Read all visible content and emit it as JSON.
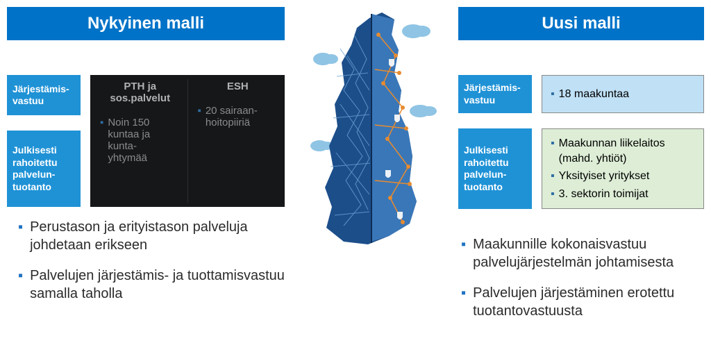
{
  "colors": {
    "title_bg": "#0073c8",
    "side_label_bg": "#1f92d6",
    "dark_box_bg": "#161718",
    "dark_text": "#8a8b8c",
    "dark_title_text": "#b0b1b2",
    "box_blue_bg": "#bfe0f5",
    "box_green_bg": "#ddedd6",
    "bullet_accent": "#2f6ea5",
    "bottom_bullet_accent": "#1f72c2",
    "map_dark": "#1c4e8a",
    "map_light": "#3a77b8",
    "map_node": "#e78b2f",
    "cloud": "#8fc4e4"
  },
  "left": {
    "title": "Nykyinen malli",
    "row1": {
      "label": "Järjestämis-\nvastuu",
      "colA_title": "PTH ja sos.palvelut",
      "colB_title": "ESH"
    },
    "row2": {
      "label": "Julkisesti rahoitettu palvelun-\ntuotanto",
      "colA_text": "Noin 150 kuntaa ja kunta-\nyhtymää",
      "colB_text": "20 sairaan-\nhoitopiiriä"
    },
    "bullets": [
      "Perustason ja erityistason palveluja johdetaan erikseen",
      "Palvelujen järjestämis- ja tuottamisvastuu samalla taholla"
    ]
  },
  "right": {
    "title": "Uusi malli",
    "row1": {
      "label": "Järjestämis-\nvastuu",
      "box_text": "18 maakuntaa",
      "box_bg": "#bfe0f5"
    },
    "row2": {
      "label": "Julkisesti rahoitettu palvelun-\ntuotanto",
      "box_items": [
        "Maakunnan liikelaitos (mahd. yhtiöt)",
        "Yksityiset yritykset",
        "3. sektorin toimijat"
      ],
      "box_bg": "#ddedd6"
    },
    "bullets": [
      "Maakunnille kokonaisvastuu palvelujärjestelmän johtamisesta",
      "Palvelujen järjestäminen erotettu tuotantovastuusta"
    ]
  }
}
